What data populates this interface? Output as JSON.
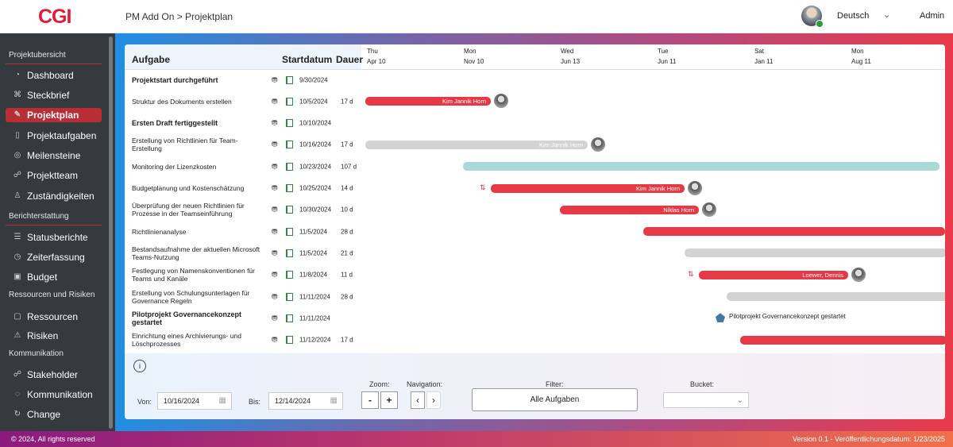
{
  "header": {
    "logo": "CGI",
    "breadcrumb": "PM Add On > Projektplan",
    "language": "Deutsch",
    "user": "Admin"
  },
  "sidebar": {
    "sections": [
      {
        "title": "Projektubersicht",
        "items": [
          {
            "label": "Dashboard",
            "icon": "dashboard-icon"
          },
          {
            "label": "Steckbrief",
            "icon": "tag-icon"
          },
          {
            "label": "Projektplan",
            "icon": "pencil-icon",
            "active": true
          },
          {
            "label": "Projektaufgaben",
            "icon": "clipboard-icon"
          },
          {
            "label": "Meilensteine",
            "icon": "check-circle-icon"
          },
          {
            "label": "Projektteam",
            "icon": "team-icon"
          },
          {
            "label": "Zuständigkeiten",
            "icon": "person-icon"
          }
        ]
      },
      {
        "title": "Berichterstattung",
        "items": [
          {
            "label": "Statusberichte",
            "icon": "list-icon"
          },
          {
            "label": "Zeiterfassung",
            "icon": "clock-icon"
          },
          {
            "label": "Budget",
            "icon": "money-icon"
          }
        ]
      },
      {
        "title": "Ressourcen und Risiken",
        "items": [
          {
            "label": "Ressourcen",
            "icon": "resource-icon"
          },
          {
            "label": "Risiken",
            "icon": "warning-icon"
          }
        ]
      },
      {
        "title": "Kommunikation",
        "items": [
          {
            "label": "Stakeholder",
            "icon": "stakeholder-icon"
          },
          {
            "label": "Kommunikation",
            "icon": "chat-icon"
          },
          {
            "label": "Change",
            "icon": "refresh-icon"
          }
        ]
      }
    ]
  },
  "table": {
    "col_task": "Aufgabe",
    "col_start": "Startdatum",
    "col_duration": "Dauer"
  },
  "timeline": [
    {
      "day": "Thu",
      "date": "Apr 10"
    },
    {
      "day": "Mon",
      "date": "Nov 10"
    },
    {
      "day": "Wed",
      "date": "Jun 13"
    },
    {
      "day": "Tue",
      "date": "Jun 11"
    },
    {
      "day": "Sat",
      "date": "Jan 11"
    },
    {
      "day": "Mon",
      "date": "Aug 11"
    }
  ],
  "tasks": [
    {
      "name": "Projektstart durchgeführt",
      "bold": true,
      "start": "9/30/2024",
      "duration": ""
    },
    {
      "name": "Struktur des Dokuments erstellen",
      "start": "10/5/2024",
      "duration": "17 d",
      "assignee": "Kim Jannik Horn",
      "color": "#e63946"
    },
    {
      "name": "Ersten Draft fertiggestellt",
      "bold": true,
      "start": "10/10/2024",
      "duration": ""
    },
    {
      "name": "Erstellung von Richtlinien für Team-Erstellung",
      "start": "10/16/2024",
      "duration": "17 d",
      "assignee": "Kim Jannik Horn",
      "color": "#d3d3d3"
    },
    {
      "name": "Monitoring der Lizenzkosten",
      "start": "10/23/2024",
      "duration": "107 d",
      "color": "#a8d8d8"
    },
    {
      "name": "Budgetplanung und Kostenschätzung",
      "start": "10/25/2024",
      "duration": "14 d",
      "assignee": "Kim Jannik Horn",
      "color": "#e63946"
    },
    {
      "name": "Überprüfung der neuen Richtlinien für Prozesse in der Teamseinführung",
      "start": "10/30/2024",
      "duration": "10 d",
      "assignee": "Niklas Horn",
      "color": "#e63946"
    },
    {
      "name": "Richtlinienanalyse",
      "start": "11/5/2024",
      "duration": "28 d",
      "color": "#e63946"
    },
    {
      "name": "Bestandsaufnahme der aktuellen Microsoft Teams-Nutzung",
      "start": "11/5/2024",
      "duration": "21 d",
      "color": "#d3d3d3"
    },
    {
      "name": "Festlegung von Namenskonventionen für Teams und Kanäle",
      "start": "11/8/2024",
      "duration": "11 d",
      "assignee": "Loewer, Dennis",
      "color": "#e63946"
    },
    {
      "name": "Erstellung von Schulungsunterlagen für Governance Regeln",
      "start": "11/11/2024",
      "duration": "28 d",
      "color": "#d3d3d3"
    },
    {
      "name": "Pilotprojekt Governancekonzept gestartet",
      "bold": true,
      "start": "11/11/2024",
      "duration": "",
      "milestone": "Pilotprojekt Governancekonzept gestartet"
    },
    {
      "name": "Einrichtung eines Archivierungs- und Löschprozesses",
      "start": "11/12/2024",
      "duration": "17 d",
      "color": "#e63946"
    }
  ],
  "controls": {
    "from_label": "Von:",
    "from_value": "10/16/2024",
    "to_label": "Bis:",
    "to_value": "12/14/2024",
    "zoom_label": "Zoom:",
    "zoom_out": "-",
    "zoom_in": "+",
    "nav_label": "Navigation:",
    "nav_prev": "‹",
    "nav_next": "›",
    "filter_label": "Filter:",
    "filter_value": "Alle Aufgaben",
    "bucket_label": "Bucket:",
    "bucket_value": ""
  },
  "footer": {
    "copyright": "© 2024, All rights reserved",
    "version": "Version 0.1 - Veröffentlichungsdatum: 1/23/2025"
  }
}
